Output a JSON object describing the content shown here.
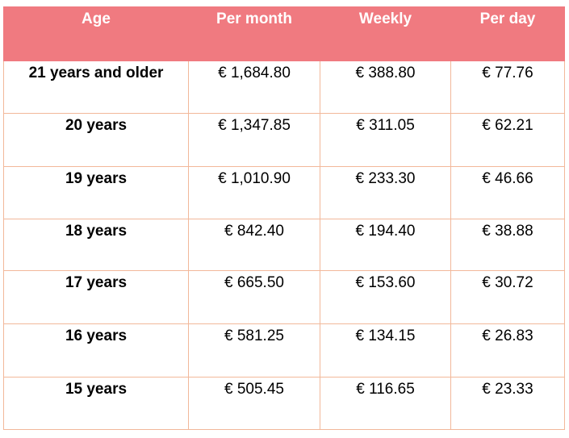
{
  "table": {
    "headers": [
      "Age",
      "Per month",
      "Weekly",
      "Per day"
    ],
    "rows": [
      [
        "21 years and older",
        "€ 1,684.80",
        "€ 388.80",
        "€ 77.76"
      ],
      [
        "20 years",
        "€ 1,347.85",
        "€ 311.05",
        "€ 62.21"
      ],
      [
        "19 years",
        "€ 1,010.90",
        "€ 233.30",
        "€ 46.66"
      ],
      [
        "18 years",
        "€ 842.40",
        "€ 194.40",
        "€ 38.88"
      ],
      [
        "17 years",
        "€ 665.50",
        "€ 153.60",
        "€ 30.72"
      ],
      [
        "16 years",
        "€ 581.25",
        "€ 134.15",
        "€ 26.83"
      ],
      [
        "15 years",
        "€ 505.45",
        "€ 116.65",
        "€ 23.33"
      ]
    ]
  },
  "colors": {
    "header_bg": "#f07a80",
    "header_text": "#ffffff",
    "cell_border": "#f2b89a"
  }
}
